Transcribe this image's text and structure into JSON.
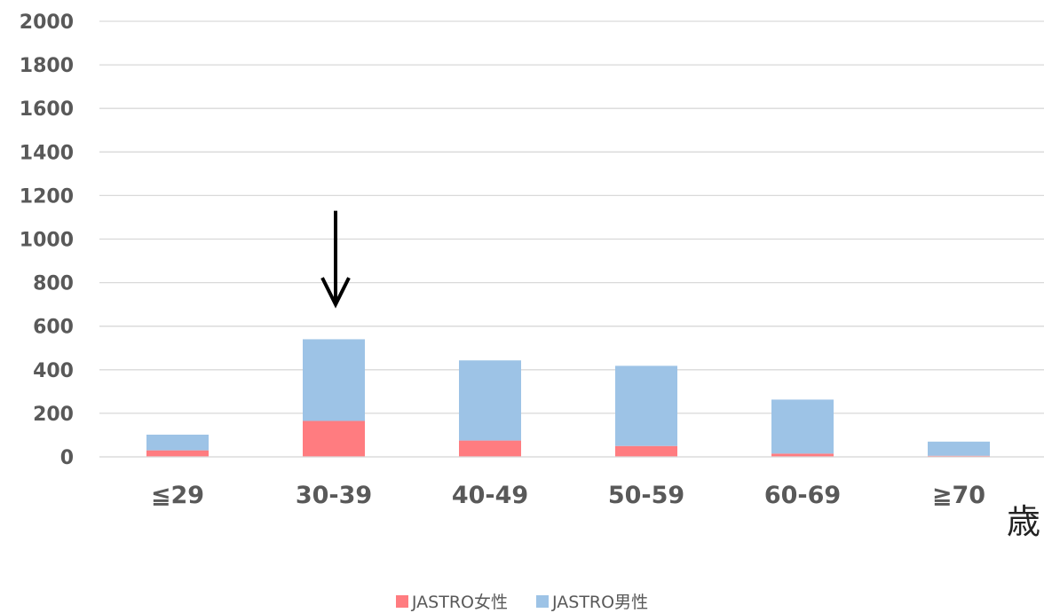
{
  "chart_data": {
    "type": "bar",
    "stacked": true,
    "categories": [
      "≦29",
      "30-39",
      "40-49",
      "50-59",
      "60-69",
      "≧70"
    ],
    "series": [
      {
        "name": "JASTRO女性",
        "color": "#ff7c80",
        "values": [
          30,
          165,
          75,
          50,
          15,
          5
        ]
      },
      {
        "name": "JASTRO男性",
        "color": "#9dc3e6",
        "values": [
          72,
          375,
          368,
          368,
          248,
          65
        ]
      }
    ],
    "ylim": [
      0,
      2000
    ],
    "yticks": [
      0,
      200,
      400,
      600,
      800,
      1000,
      1200,
      1400,
      1600,
      1800,
      2000
    ],
    "x_unit_label": "歳",
    "grid": true,
    "legend_position": "bottom",
    "annotations": [
      {
        "type": "down-arrow",
        "category": "30-39",
        "from_value": 1130,
        "to_value": 700
      }
    ]
  }
}
